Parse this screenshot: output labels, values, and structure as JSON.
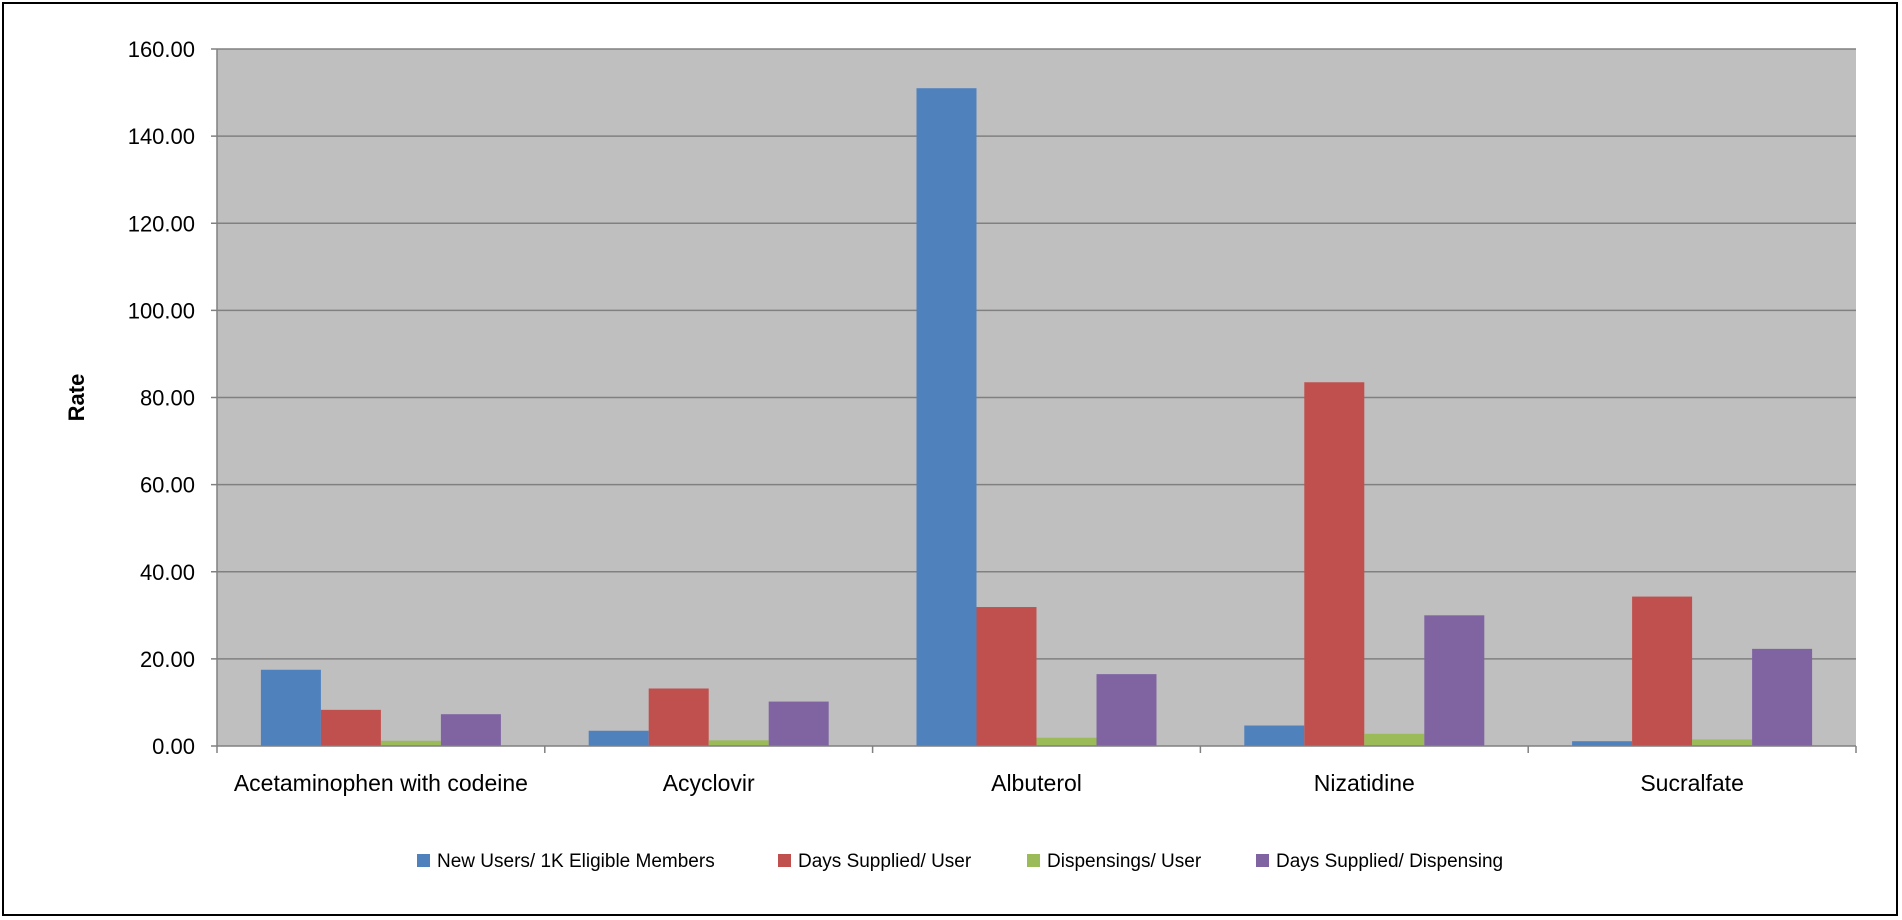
{
  "chart_data": {
    "type": "bar",
    "title": "",
    "xlabel": "",
    "ylabel": "Rate",
    "ylim": [
      0,
      160
    ],
    "yticks": [
      "0.00",
      "20.00",
      "40.00",
      "60.00",
      "80.00",
      "100.00",
      "120.00",
      "140.00",
      "160.00"
    ],
    "grid": true,
    "legend_position": "bottom",
    "plot_background": "#BFBFBF",
    "categories": [
      "Acetaminophen with codeine",
      "Acyclovir",
      "Albuterol",
      "Nizatidine",
      "Sucralfate"
    ],
    "series": [
      {
        "name": "New Users/ 1K Eligible Members",
        "color": "#4F81BD",
        "values": [
          17.5,
          3.5,
          151.0,
          4.7,
          1.1
        ]
      },
      {
        "name": "Days Supplied/ User",
        "color": "#C0504D",
        "values": [
          8.3,
          13.2,
          31.9,
          83.5,
          34.3
        ]
      },
      {
        "name": "Dispensings/ User",
        "color": "#9BBB59",
        "values": [
          1.2,
          1.3,
          1.9,
          2.8,
          1.5
        ]
      },
      {
        "name": "Days Supplied/ Dispensing",
        "color": "#8064A2",
        "values": [
          7.3,
          10.2,
          16.5,
          30.0,
          22.3
        ]
      }
    ]
  }
}
